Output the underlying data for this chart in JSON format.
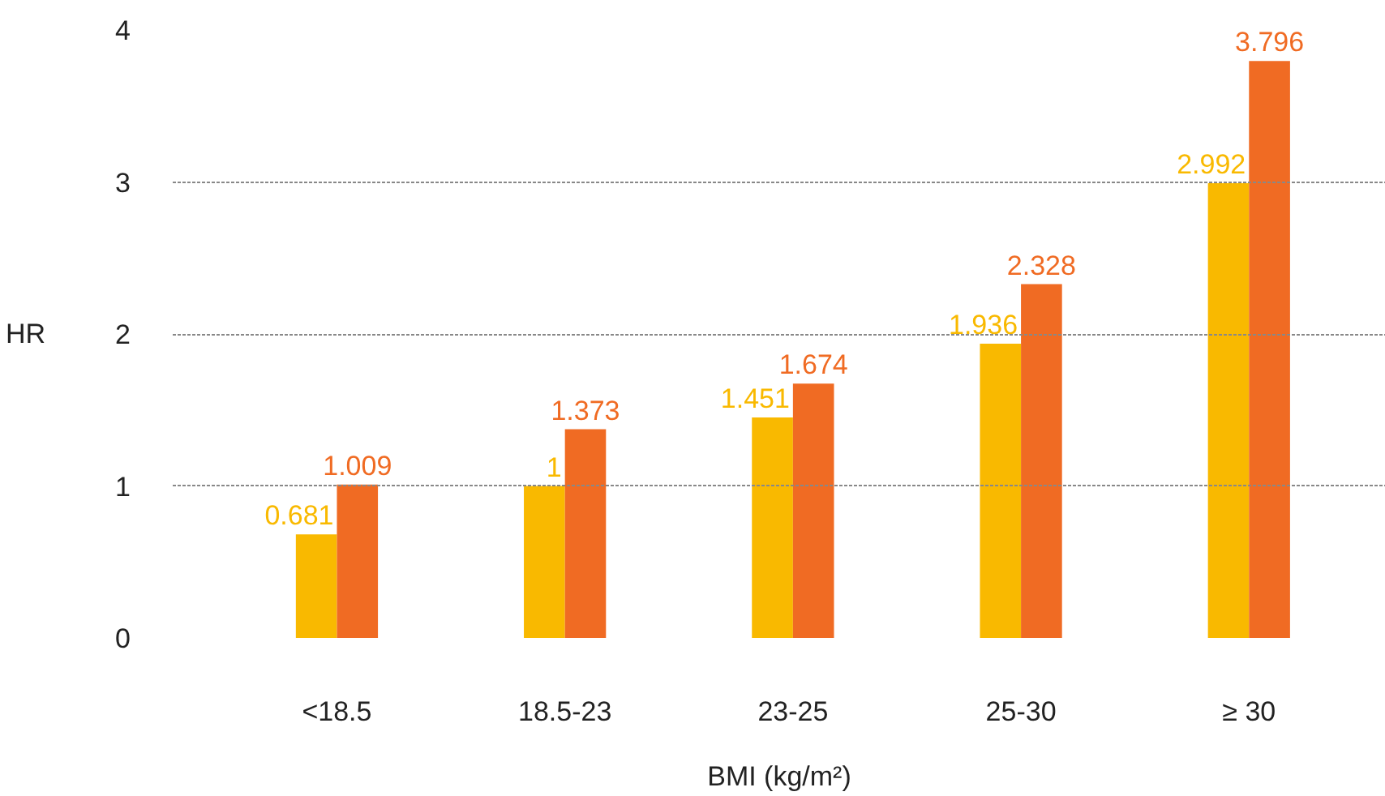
{
  "chart_data": {
    "type": "bar",
    "xlabel": "BMI (kg/m²)",
    "ylabel": "HR",
    "categories": [
      "<18.5",
      "18.5-23",
      "23-25",
      "25-30",
      "≥ 30"
    ],
    "series": [
      {
        "color": "#f9b900",
        "values": [
          0.681,
          1,
          1.451,
          1.936,
          2.992
        ]
      },
      {
        "color": "#f06b23",
        "values": [
          1.009,
          1.373,
          1.674,
          2.328,
          3.796
        ]
      }
    ],
    "ylim": [
      0,
      4
    ],
    "yticks": [
      0,
      1,
      2,
      3,
      4
    ],
    "grid": "y",
    "data_labels": true
  }
}
